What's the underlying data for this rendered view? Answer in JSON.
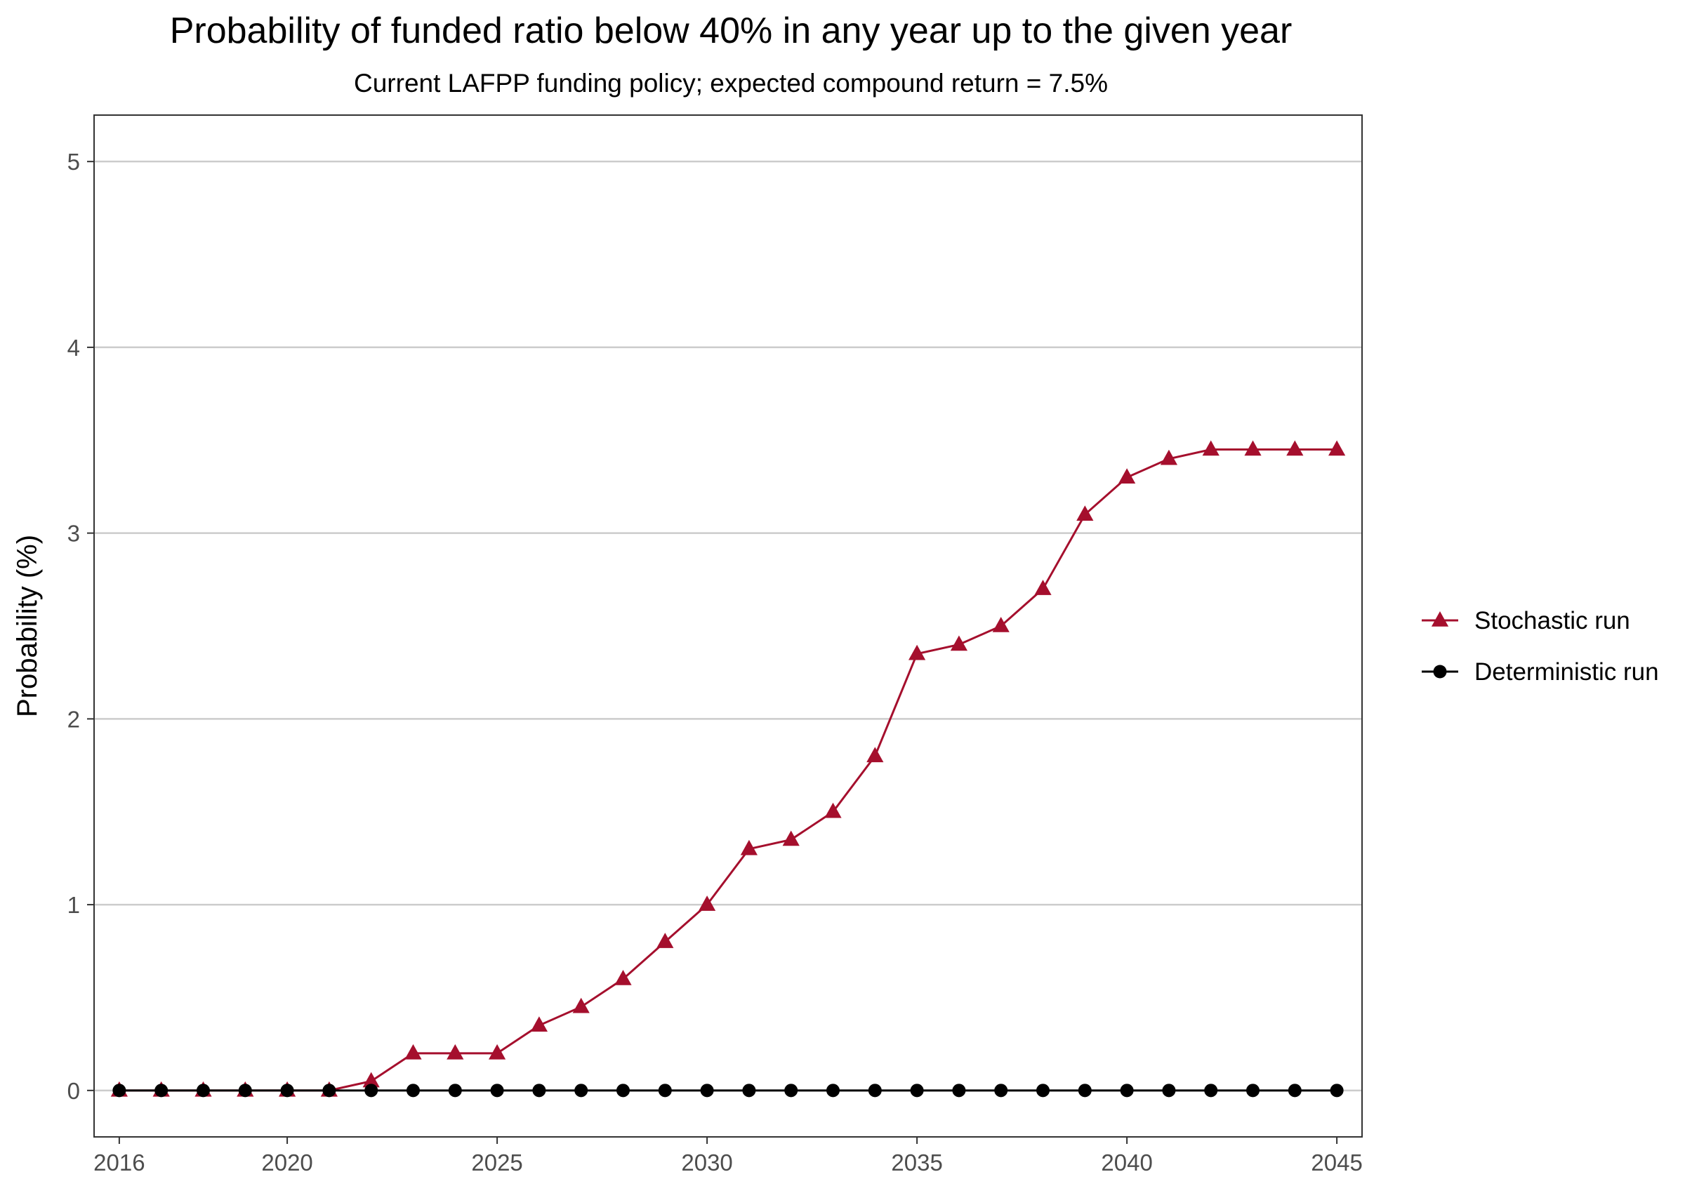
{
  "chart_data": {
    "type": "line",
    "title": "Probability of funded ratio below 40% in any year up to the given year",
    "subtitle": "Current LAFPP funding policy; expected compound return = 7.5%",
    "xlabel": "",
    "ylabel": "Probability (%)",
    "xlim": [
      2015.4,
      2045.6
    ],
    "ylim": [
      -0.25,
      5.25
    ],
    "x_ticks": [
      2016,
      2020,
      2025,
      2030,
      2035,
      2040,
      2045
    ],
    "y_ticks": [
      0,
      1,
      2,
      3,
      4,
      5
    ],
    "grid": "horizontal major",
    "legend_position": "right",
    "x": [
      2016,
      2017,
      2018,
      2019,
      2020,
      2021,
      2022,
      2023,
      2024,
      2025,
      2026,
      2027,
      2028,
      2029,
      2030,
      2031,
      2032,
      2033,
      2034,
      2035,
      2036,
      2037,
      2038,
      2039,
      2040,
      2041,
      2042,
      2043,
      2044,
      2045
    ],
    "series": [
      {
        "name": "Stochastic run",
        "color": "#A50F2D",
        "marker": "triangle",
        "values": [
          0,
          0,
          0,
          0,
          0,
          0,
          0.05,
          0.2,
          0.2,
          0.2,
          0.35,
          0.45,
          0.6,
          0.8,
          1.0,
          1.3,
          1.35,
          1.5,
          1.8,
          2.35,
          2.4,
          2.5,
          2.7,
          3.1,
          3.3,
          3.4,
          3.45,
          3.45,
          3.45,
          3.45
        ]
      },
      {
        "name": "Deterministic run",
        "color": "#000000",
        "marker": "circle",
        "values": [
          0,
          0,
          0,
          0,
          0,
          0,
          0,
          0,
          0,
          0,
          0,
          0,
          0,
          0,
          0,
          0,
          0,
          0,
          0,
          0,
          0,
          0,
          0,
          0,
          0,
          0,
          0,
          0,
          0,
          0
        ]
      }
    ]
  }
}
